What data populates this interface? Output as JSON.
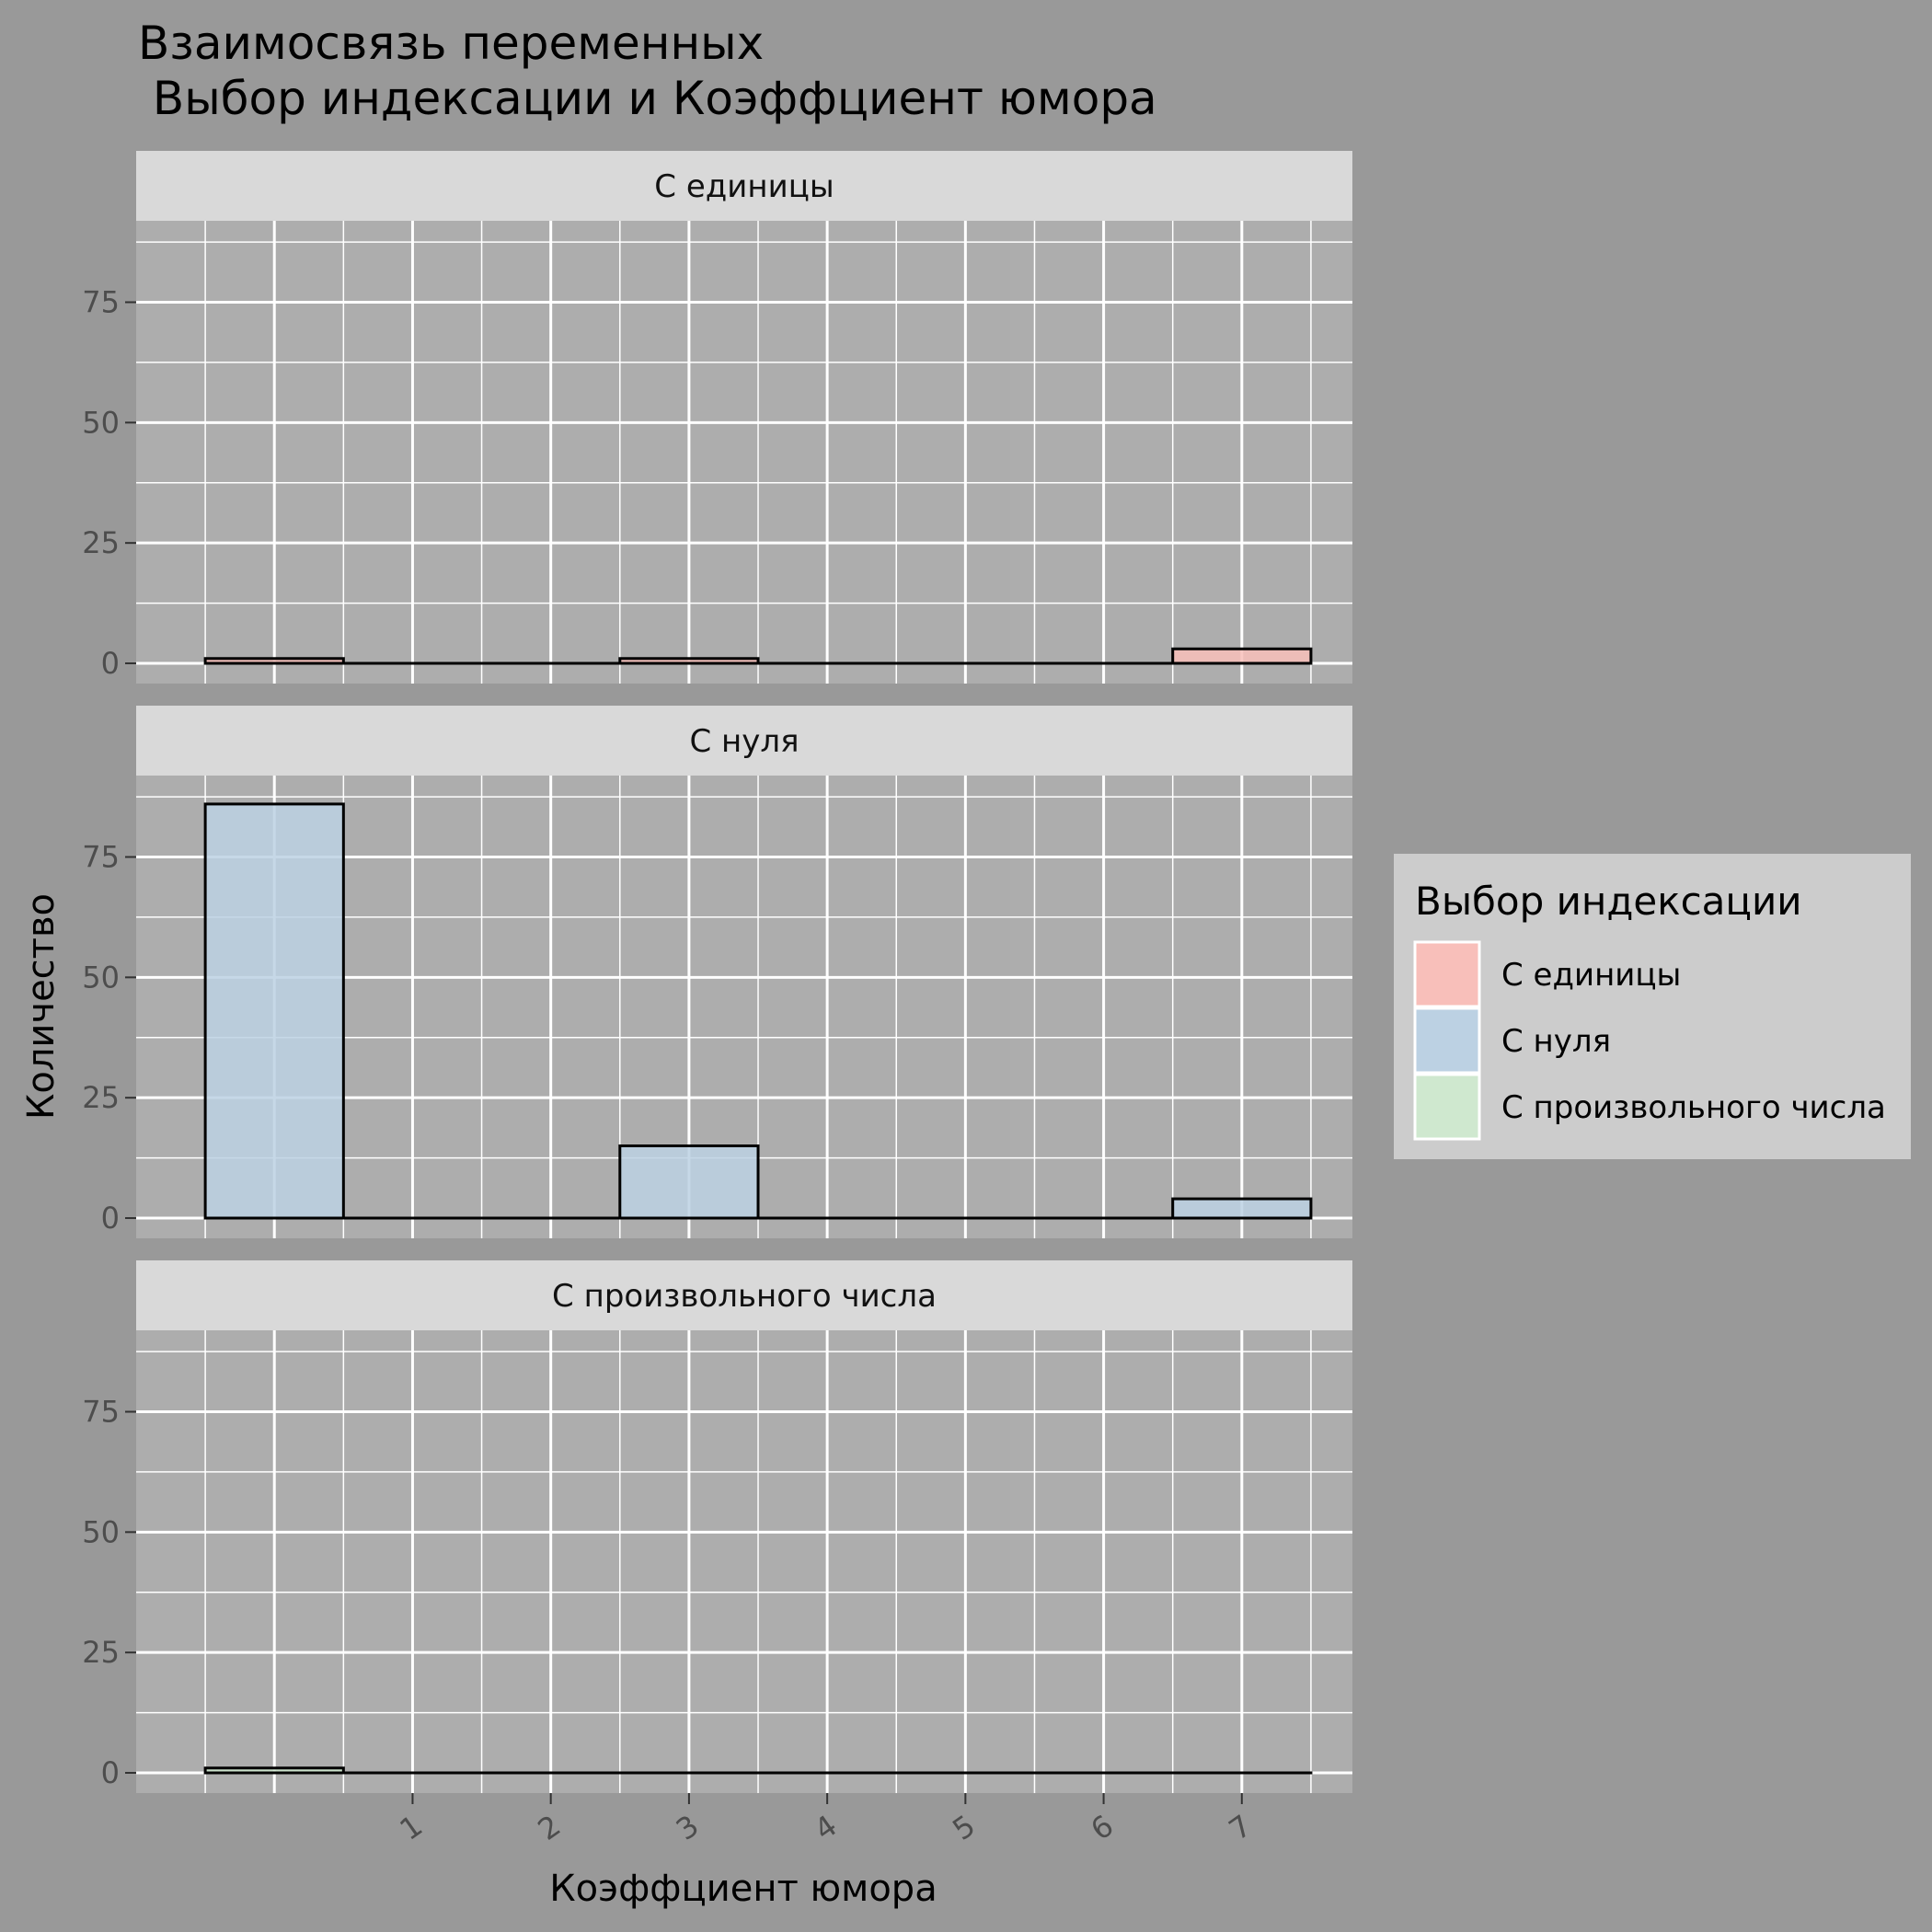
{
  "chart_data": {
    "type": "bar",
    "title_line1": "Взаимосвязь переменных",
    "title_line2": " Выбор индексации и Коэффциент юмора",
    "xlabel": "Коэффциент юмора",
    "ylabel": "Количество",
    "x_ticks": [
      "1",
      "2",
      "3",
      "4",
      "5",
      "6",
      "7"
    ],
    "x": [
      0,
      1,
      2,
      3,
      4,
      5,
      6,
      7
    ],
    "xlim": [
      -1,
      7.8
    ],
    "ylim": [
      0,
      90
    ],
    "y_ticks": [
      "0",
      "25",
      "50",
      "75"
    ],
    "legend_title": "Выбор индексации",
    "legend_position": "right",
    "grid": true,
    "facets": [
      {
        "label": "С единицы",
        "color": "#F8BFBA",
        "values": [
          1,
          0,
          0,
          1,
          0,
          0,
          0,
          3
        ]
      },
      {
        "label": "С нуля",
        "color": "#BCD1E3",
        "values": [
          86,
          0,
          0,
          15,
          0,
          0,
          0,
          4
        ]
      },
      {
        "label": "С произвольного числа",
        "color": "#CFE8CF",
        "values": [
          1,
          0,
          0,
          0,
          0,
          0,
          0,
          0
        ]
      }
    ],
    "colors": {
      "page_background": "#999999",
      "panel_background": "#ADADAD",
      "strip_background": "#D9D9D9",
      "legend_background": "#CCCCCC",
      "grid": "#FFFFFF",
      "bar_outline": "#000000"
    }
  }
}
